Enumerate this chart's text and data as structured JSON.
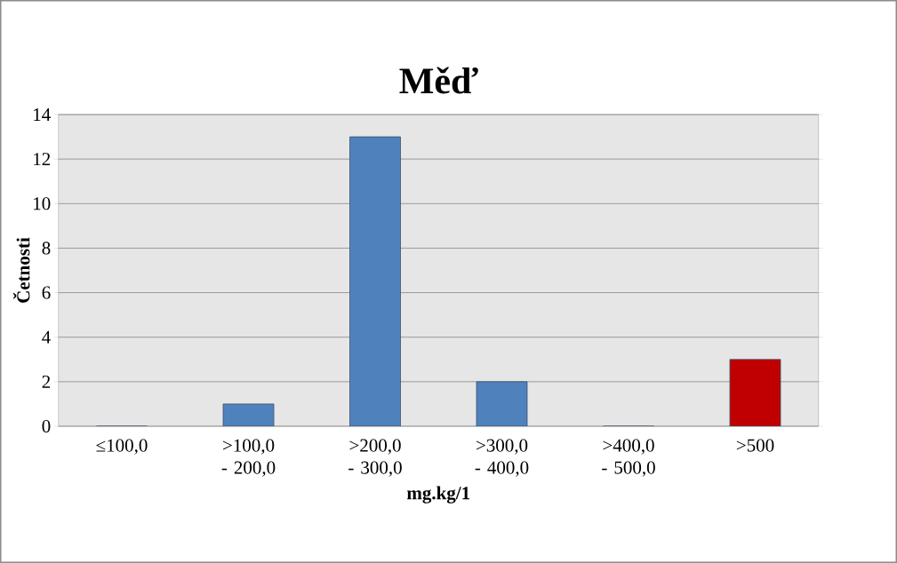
{
  "chart_data": {
    "type": "bar",
    "title": "Měď",
    "xlabel": "mg.kg/1",
    "ylabel": "Četnosti",
    "categories": [
      "≤100,0",
      ">100,0 - 200,0",
      ">200,0 - 300,0",
      ">300,0 - 400,0",
      ">400,0 - 500,0",
      ">500"
    ],
    "values": [
      0,
      1,
      13,
      2,
      0,
      3
    ],
    "colors": [
      "#4f81bd",
      "#4f81bd",
      "#4f81bd",
      "#4f81bd",
      "#4f81bd",
      "#c00000"
    ],
    "ylim": [
      0,
      14
    ],
    "yticks": [
      0,
      2,
      4,
      6,
      8,
      10,
      12,
      14
    ],
    "grid": "y"
  }
}
